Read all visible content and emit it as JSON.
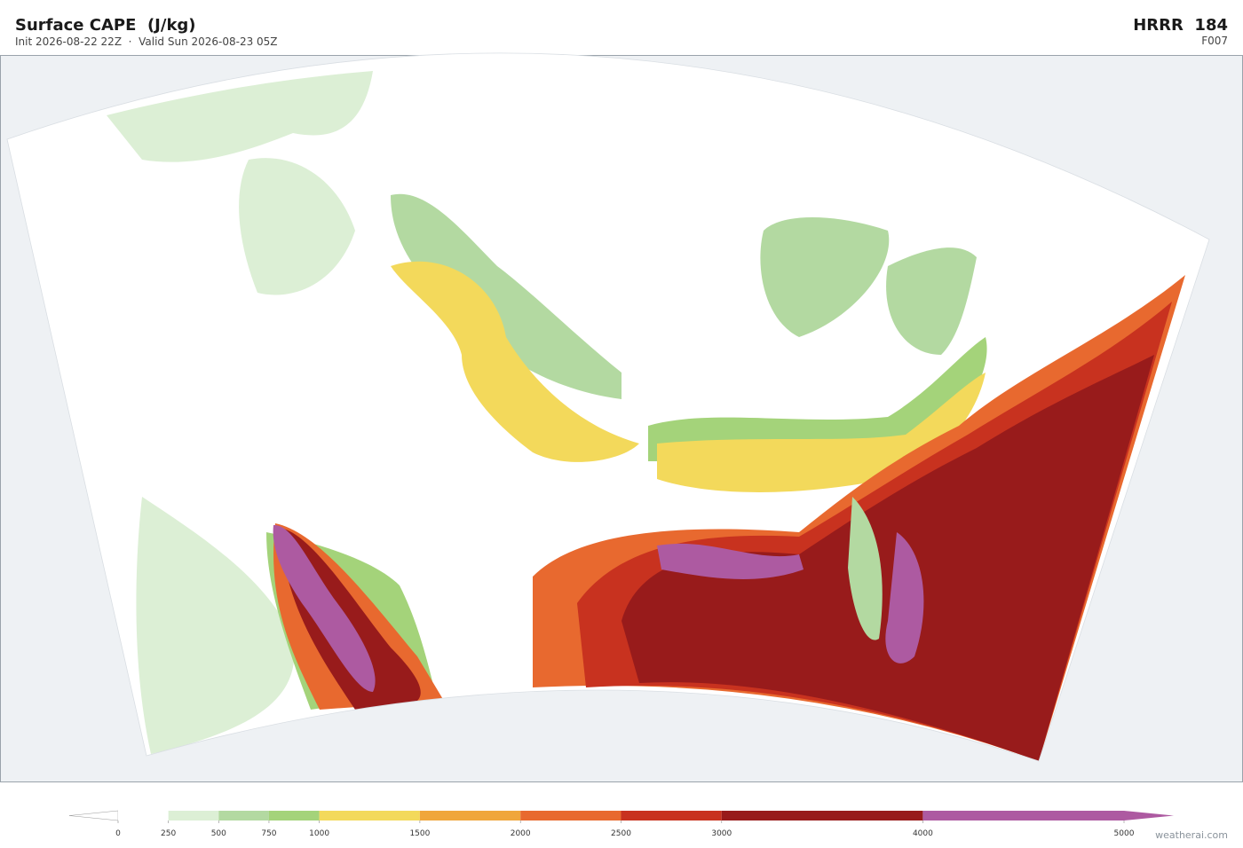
{
  "header": {
    "title": "Surface CAPE  (J/kg)",
    "subtitle": "Init 2026-08-22 22Z  ·  Valid Sun 2026-08-23 05Z",
    "model": "HRRR  184",
    "forecast_hour": "F007"
  },
  "colorbar": {
    "ticks": [
      0,
      250,
      500,
      750,
      1000,
      1500,
      2000,
      2500,
      3000,
      4000,
      5000
    ],
    "colors": [
      "#ffffff",
      "#dcefd5",
      "#b3d9a1",
      "#a4d37a",
      "#f3d95b",
      "#f0a63b",
      "#e8692f",
      "#c8321f",
      "#981b1b",
      "#ad5aa1"
    ]
  },
  "footer": {
    "watermark": "weatherai.com"
  }
}
